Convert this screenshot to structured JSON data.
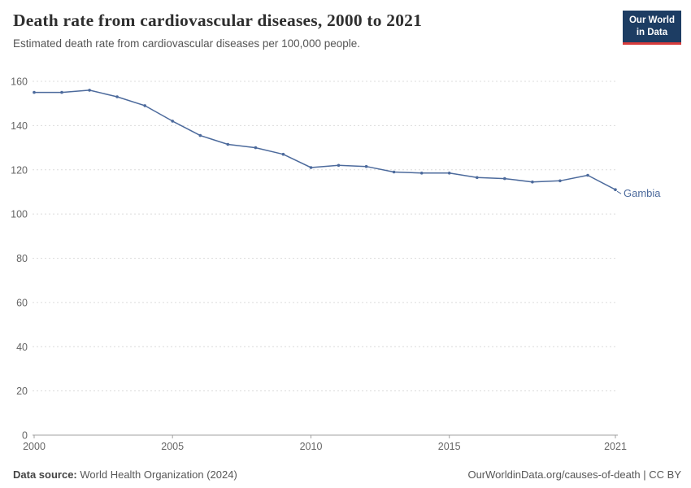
{
  "header": {
    "title": "Death rate from cardiovascular diseases, 2000 to 2021",
    "subtitle": "Estimated death rate from cardiovascular diseases per 100,000 people.",
    "logo_line1": "Our World",
    "logo_line2": "in Data"
  },
  "footer": {
    "source_label": "Data source:",
    "source_value": "World Health Organization (2024)",
    "credit": "OurWorldinData.org/causes-of-death | CC BY"
  },
  "chart_data": {
    "type": "line",
    "title": "Death rate from cardiovascular diseases, 2000 to 2021",
    "subtitle": "Estimated death rate from cardiovascular diseases per 100,000 people.",
    "x": [
      2000,
      2001,
      2002,
      2003,
      2004,
      2005,
      2006,
      2007,
      2008,
      2009,
      2010,
      2011,
      2012,
      2013,
      2014,
      2015,
      2016,
      2017,
      2018,
      2019,
      2020,
      2021
    ],
    "series": [
      {
        "name": "Gambia",
        "color": "#4c6a9c",
        "values": [
          155,
          155,
          156,
          153,
          149,
          142,
          135.5,
          131.5,
          130,
          127,
          121,
          122,
          121.5,
          119,
          118.5,
          118.5,
          116.5,
          116,
          114.5,
          115,
          117.5,
          111
        ]
      }
    ],
    "xlim": [
      2000,
      2021
    ],
    "ylim": [
      0,
      160
    ],
    "yticks": [
      0,
      20,
      40,
      60,
      80,
      100,
      120,
      140,
      160
    ],
    "xticks": [
      2000,
      2005,
      2010,
      2015,
      2021
    ],
    "grid": "horizontal-dashed",
    "legend_position": "line-end-label",
    "xlabel": "",
    "ylabel": ""
  }
}
